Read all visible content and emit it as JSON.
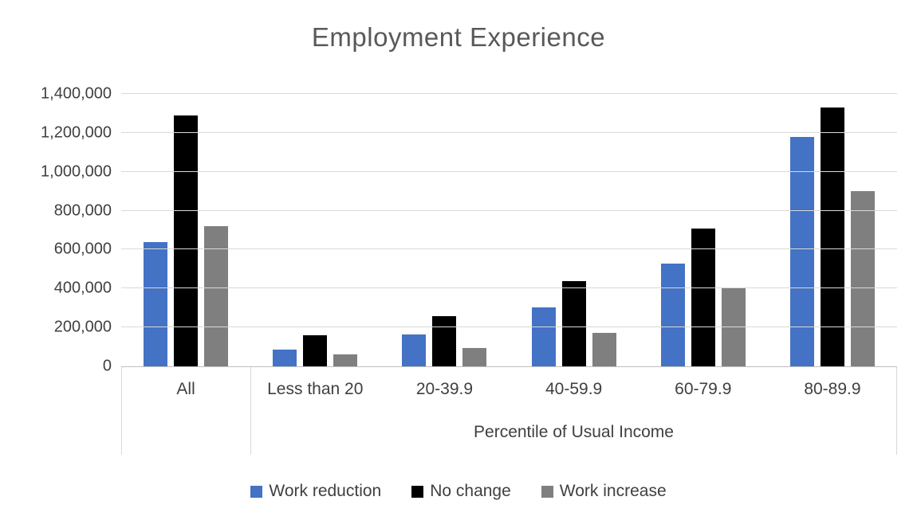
{
  "chart_data": {
    "type": "bar",
    "title": "Employment Experience",
    "categories": [
      "All",
      "Less than 20",
      "20-39.9",
      "40-59.9",
      "60-79.9",
      "80-89.9"
    ],
    "series": [
      {
        "name": "Work reduction",
        "color": "#4472C4",
        "values": [
          640000,
          85000,
          165000,
          305000,
          530000,
          1180000
        ]
      },
      {
        "name": "No change",
        "color": "#000000",
        "values": [
          1290000,
          160000,
          260000,
          440000,
          710000,
          1330000
        ]
      },
      {
        "name": "Work increase",
        "color": "#7F7F7F",
        "values": [
          720000,
          60000,
          95000,
          170000,
          400000,
          900000
        ]
      }
    ],
    "xlabel": "Percentile of Usual Income",
    "ylabel": "",
    "ylim": [
      0,
      1400000
    ],
    "ytick_interval": 200000,
    "yticks": [
      "0",
      "200,000",
      "400,000",
      "600,000",
      "800,000",
      "1,000,000",
      "1,200,000",
      "1,400,000"
    ],
    "grid": true,
    "legend_position": "bottom"
  }
}
